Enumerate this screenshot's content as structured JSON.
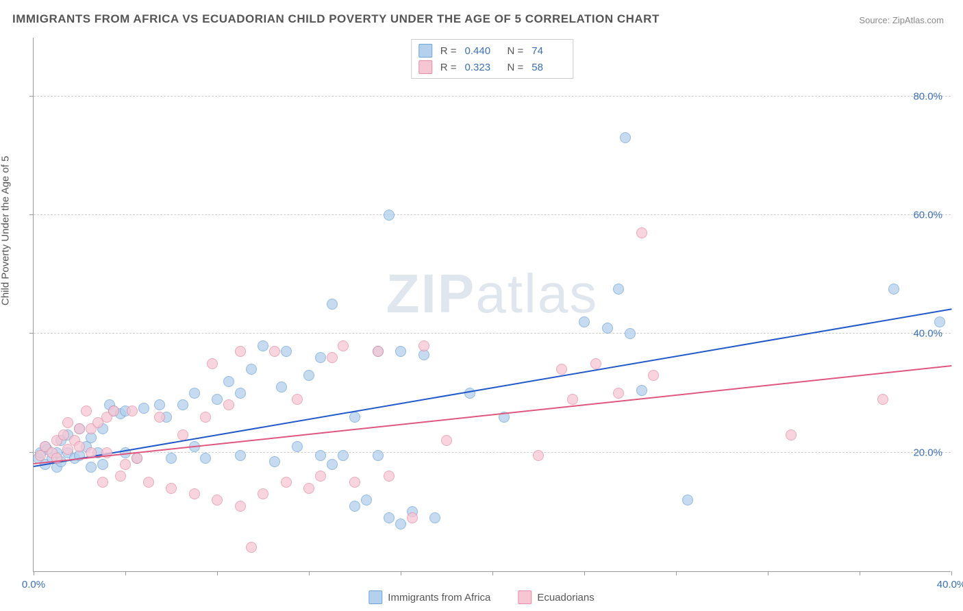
{
  "title": "IMMIGRANTS FROM AFRICA VS ECUADORIAN CHILD POVERTY UNDER THE AGE OF 5 CORRELATION CHART",
  "source_label": "Source:",
  "source_name": "ZipAtlas.com",
  "ylabel": "Child Poverty Under the Age of 5",
  "watermark_a": "ZIP",
  "watermark_b": "atlas",
  "chart": {
    "type": "scatter",
    "xlim": [
      0,
      40
    ],
    "ylim": [
      0,
      90
    ],
    "x_ticks": [
      0,
      4,
      8,
      12,
      16,
      20,
      24,
      28,
      32,
      36,
      40
    ],
    "x_tick_labels": {
      "0": "0.0%",
      "40": "40.0%"
    },
    "y_gridlines": [
      20,
      40,
      60,
      80
    ],
    "y_tick_labels": [
      "20.0%",
      "40.0%",
      "60.0%",
      "80.0%"
    ],
    "background_color": "#ffffff",
    "grid_color": "#cccccc",
    "axis_color": "#999999",
    "tick_label_color": "#3b6fb5",
    "point_radius": 8,
    "series": [
      {
        "name": "Immigrants from Africa",
        "fill": "#b3d0ec",
        "stroke": "#6fa3d8",
        "trend_color": "#2158c9",
        "trend_width": 2,
        "R_label": "R =",
        "R": "0.440",
        "N_label": "N =",
        "N": "74",
        "trend": {
          "x1": 0,
          "y1": 17.5,
          "x2": 40,
          "y2": 44
        },
        "points": [
          [
            0.2,
            19
          ],
          [
            0.3,
            20
          ],
          [
            0.5,
            18
          ],
          [
            0.5,
            21
          ],
          [
            0.6,
            20.5
          ],
          [
            0.8,
            19
          ],
          [
            1.0,
            20
          ],
          [
            1.0,
            17.5
          ],
          [
            1.2,
            22
          ],
          [
            1.2,
            18.5
          ],
          [
            1.5,
            20
          ],
          [
            1.5,
            23
          ],
          [
            1.8,
            19
          ],
          [
            2.0,
            19.5
          ],
          [
            2.0,
            24
          ],
          [
            2.3,
            21
          ],
          [
            2.5,
            17.5
          ],
          [
            2.5,
            22.5
          ],
          [
            2.8,
            20
          ],
          [
            3.0,
            18
          ],
          [
            3.0,
            24
          ],
          [
            3.3,
            28
          ],
          [
            3.5,
            27
          ],
          [
            3.8,
            26.5
          ],
          [
            4.0,
            20
          ],
          [
            4.0,
            27
          ],
          [
            4.5,
            19
          ],
          [
            4.8,
            27.5
          ],
          [
            5.5,
            28
          ],
          [
            5.8,
            26
          ],
          [
            6.0,
            19
          ],
          [
            6.5,
            28
          ],
          [
            7.0,
            21
          ],
          [
            7.0,
            30
          ],
          [
            7.5,
            19
          ],
          [
            8.0,
            29
          ],
          [
            8.5,
            32
          ],
          [
            9.0,
            19.5
          ],
          [
            9.0,
            30
          ],
          [
            9.5,
            34
          ],
          [
            10.0,
            38
          ],
          [
            10.5,
            18.5
          ],
          [
            10.8,
            31
          ],
          [
            11.0,
            37
          ],
          [
            11.5,
            21
          ],
          [
            12.0,
            33
          ],
          [
            12.5,
            19.5
          ],
          [
            12.5,
            36
          ],
          [
            13.0,
            18
          ],
          [
            13.0,
            45
          ],
          [
            13.5,
            19.5
          ],
          [
            14.0,
            11
          ],
          [
            14.0,
            26
          ],
          [
            14.5,
            12
          ],
          [
            15.0,
            19.5
          ],
          [
            15.0,
            37
          ],
          [
            15.5,
            9
          ],
          [
            15.5,
            60
          ],
          [
            16.0,
            8
          ],
          [
            16.0,
            37
          ],
          [
            16.5,
            10
          ],
          [
            17.0,
            36.5
          ],
          [
            17.5,
            9
          ],
          [
            19.0,
            30
          ],
          [
            20.5,
            26
          ],
          [
            24.0,
            42
          ],
          [
            25.0,
            41
          ],
          [
            25.5,
            47.5
          ],
          [
            25.8,
            73
          ],
          [
            26.0,
            40
          ],
          [
            26.5,
            30.5
          ],
          [
            28.5,
            12
          ],
          [
            37.5,
            47.5
          ],
          [
            39.5,
            42
          ]
        ]
      },
      {
        "name": "Ecuadorians",
        "fill": "#f6c7d3",
        "stroke": "#e58da4",
        "trend_color": "#e0567f",
        "trend_width": 2,
        "R_label": "R =",
        "R": "0.323",
        "N_label": "N =",
        "N": "58",
        "trend": {
          "x1": 0,
          "y1": 18,
          "x2": 40,
          "y2": 34.5
        },
        "points": [
          [
            0.3,
            19.5
          ],
          [
            0.5,
            21
          ],
          [
            0.8,
            20
          ],
          [
            1.0,
            22
          ],
          [
            1.0,
            19
          ],
          [
            1.3,
            23
          ],
          [
            1.5,
            20.5
          ],
          [
            1.5,
            25
          ],
          [
            1.8,
            22
          ],
          [
            2.0,
            24
          ],
          [
            2.0,
            21
          ],
          [
            2.3,
            27
          ],
          [
            2.5,
            24
          ],
          [
            2.5,
            20
          ],
          [
            2.8,
            25
          ],
          [
            3.0,
            15
          ],
          [
            3.2,
            26
          ],
          [
            3.2,
            20
          ],
          [
            3.5,
            27
          ],
          [
            3.8,
            16
          ],
          [
            4.0,
            18
          ],
          [
            4.3,
            27
          ],
          [
            4.5,
            19
          ],
          [
            5.0,
            15
          ],
          [
            5.5,
            26
          ],
          [
            6.0,
            14
          ],
          [
            6.5,
            23
          ],
          [
            7.0,
            13
          ],
          [
            7.5,
            26
          ],
          [
            7.8,
            35
          ],
          [
            8.0,
            12
          ],
          [
            8.5,
            28
          ],
          [
            9.0,
            11
          ],
          [
            9.0,
            37
          ],
          [
            9.5,
            4
          ],
          [
            10.0,
            13
          ],
          [
            10.5,
            37
          ],
          [
            11.0,
            15
          ],
          [
            11.5,
            29
          ],
          [
            12.0,
            14
          ],
          [
            12.5,
            16
          ],
          [
            13.0,
            36
          ],
          [
            13.5,
            38
          ],
          [
            14.0,
            15
          ],
          [
            15.0,
            37
          ],
          [
            15.5,
            16
          ],
          [
            16.5,
            9
          ],
          [
            17.0,
            38
          ],
          [
            18.0,
            22
          ],
          [
            22.0,
            19.5
          ],
          [
            23.0,
            34
          ],
          [
            23.5,
            29
          ],
          [
            24.5,
            35
          ],
          [
            25.5,
            30
          ],
          [
            26.5,
            57
          ],
          [
            27.0,
            33
          ],
          [
            33.0,
            23
          ],
          [
            37.0,
            29
          ]
        ]
      }
    ]
  },
  "bottom_legend": {
    "items": [
      {
        "swatch_fill": "#b3d0ec",
        "swatch_stroke": "#6fa3d8",
        "label": "Immigrants from Africa"
      },
      {
        "swatch_fill": "#f6c7d3",
        "swatch_stroke": "#e58da4",
        "label": "Ecuadorians"
      }
    ]
  }
}
